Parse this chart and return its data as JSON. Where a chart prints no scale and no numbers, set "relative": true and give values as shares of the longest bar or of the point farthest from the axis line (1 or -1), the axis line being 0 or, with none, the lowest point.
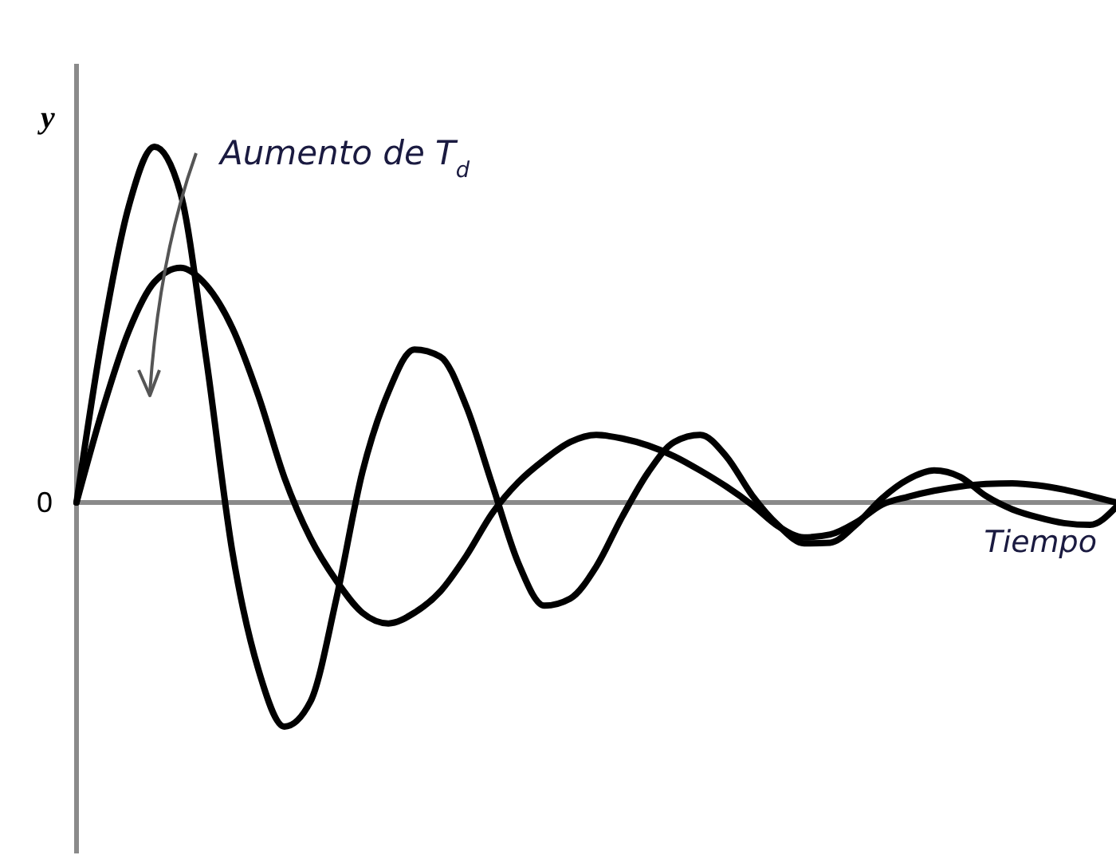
{
  "chart_data": {
    "type": "line",
    "relative": true,
    "xlabel": "Tiempo",
    "ylabel": "y",
    "annotations": [
      "Aumento de T$_{d}$",
      "0"
    ],
    "line_style": "solid",
    "categories": [
      null,
      null,
      null,
      null,
      null,
      null,
      null,
      null,
      null,
      null,
      null,
      null,
      null,
      null,
      null,
      null,
      null,
      null,
      null,
      null,
      null,
      null,
      null,
      null,
      null,
      null,
      null,
      null,
      null,
      null,
      null,
      null,
      null,
      null,
      null,
      null,
      null,
      null,
      null,
      null,
      null
    ],
    "series": [
      {
        "color": "#000000",
        "values": [
          0,
          0.47,
          0.83,
          1,
          0.87,
          0.4,
          -0.14,
          -0.47,
          -0.63,
          -0.56,
          -0.27,
          0.085,
          0.31,
          0.43,
          0.41,
          0.27,
          0.05,
          -0.17,
          -0.29,
          -0.27,
          -0.18,
          -0.04,
          0.085,
          0.17,
          0.19,
          0.13,
          0.02,
          -0.064,
          -0.115,
          -0.113,
          -0.062,
          0.012,
          0.065,
          0.09,
          0.072,
          0.018,
          -0.019,
          -0.042,
          -0.058,
          -0.063,
          -0.013
        ]
      },
      {
        "color": "#000000",
        "values": [
          0,
          0.26,
          0.48,
          0.62,
          0.66,
          0.61,
          0.49,
          0.3,
          0.07,
          -0.1,
          -0.22,
          -0.31,
          -0.34,
          -0.31,
          -0.25,
          -0.15,
          -0.03,
          0.057,
          0.12,
          0.17,
          0.19,
          0.18,
          0.16,
          0.13,
          0.09,
          0.045,
          -0.007,
          -0.067,
          -0.098,
          -0.09,
          -0.056,
          -0.006,
          0.016,
          0.033,
          0.045,
          0.052,
          0.054,
          0.048,
          0.036,
          0.019,
          0
        ]
      }
    ]
  }
}
